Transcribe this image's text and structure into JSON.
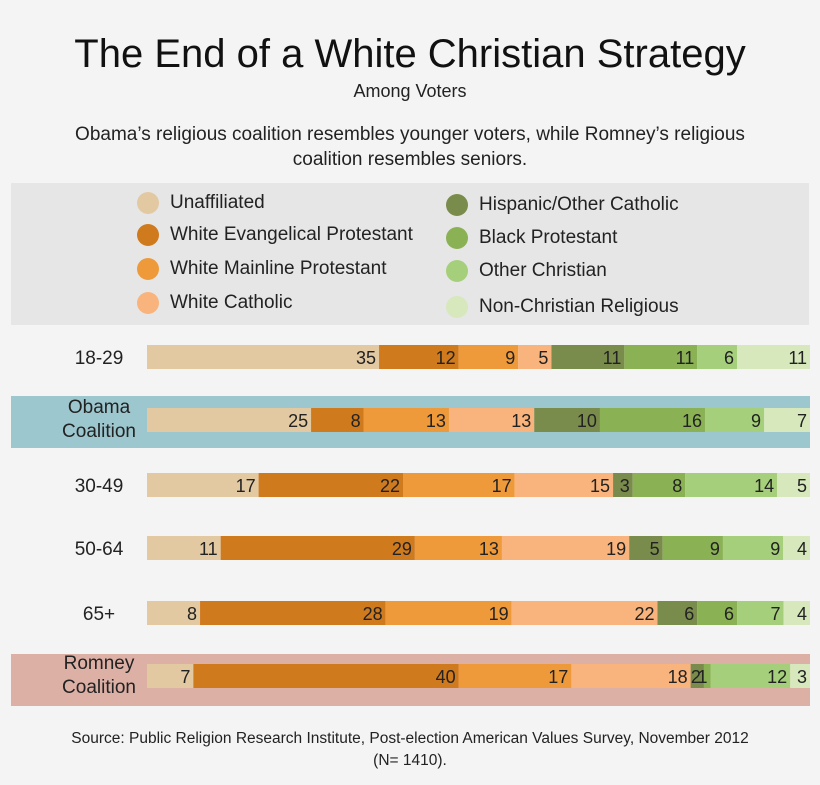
{
  "title": "The End of a White Christian Strategy",
  "subtitle": "Among Voters",
  "description": "Obama’s religious coalition resembles younger voters, while Romney’s religious coalition resembles seniors.",
  "source": "Source: Public Religion Research Institute, Post-election American Values Survey, November 2012 (N= 1410).",
  "colors": {
    "text": "#222222",
    "obama_band": "#9dc7ce",
    "romney_band": "#ddb0a6"
  },
  "chart_data": {
    "type": "bar",
    "orientation": "horizontal",
    "stacked": true,
    "title": "The End of a White Christian Strategy",
    "subtitle": "Among Voters",
    "value_unit": "percent",
    "xlim": [
      0,
      100
    ],
    "grid": false,
    "legend_position": "top",
    "categories": [
      "18-29",
      "Obama Coalition",
      "30-49",
      "50-64",
      "65+",
      "Romney Coalition"
    ],
    "highlighted_categories": {
      "Obama Coalition": "#9dc7ce",
      "Romney Coalition": "#ddb0a6"
    },
    "series": [
      {
        "name": "Unaffiliated",
        "color": "#e3c9a2",
        "values": [
          35,
          25,
          17,
          11,
          8,
          7
        ]
      },
      {
        "name": "White Evangelical Protestant",
        "color": "#d07a1e",
        "values": [
          12,
          8,
          22,
          29,
          28,
          40
        ]
      },
      {
        "name": "White Mainline Protestant",
        "color": "#ee9a3a",
        "values": [
          9,
          13,
          17,
          13,
          19,
          17
        ]
      },
      {
        "name": "White Catholic",
        "color": "#f8b47c",
        "values": [
          5,
          13,
          15,
          19,
          22,
          18
        ]
      },
      {
        "name": "Hispanic/Other Catholic",
        "color": "#7a8c4c",
        "values": [
          11,
          10,
          3,
          5,
          6,
          2
        ]
      },
      {
        "name": "Black Protestant",
        "color": "#8bb155",
        "values": [
          11,
          16,
          8,
          9,
          6,
          1
        ]
      },
      {
        "name": "Other Christian",
        "color": "#a6cf7b",
        "values": [
          6,
          9,
          14,
          9,
          7,
          12
        ]
      },
      {
        "name": "Non-Christian Religious",
        "color": "#d6e8bc",
        "values": [
          11,
          7,
          5,
          4,
          4,
          3
        ]
      }
    ]
  }
}
